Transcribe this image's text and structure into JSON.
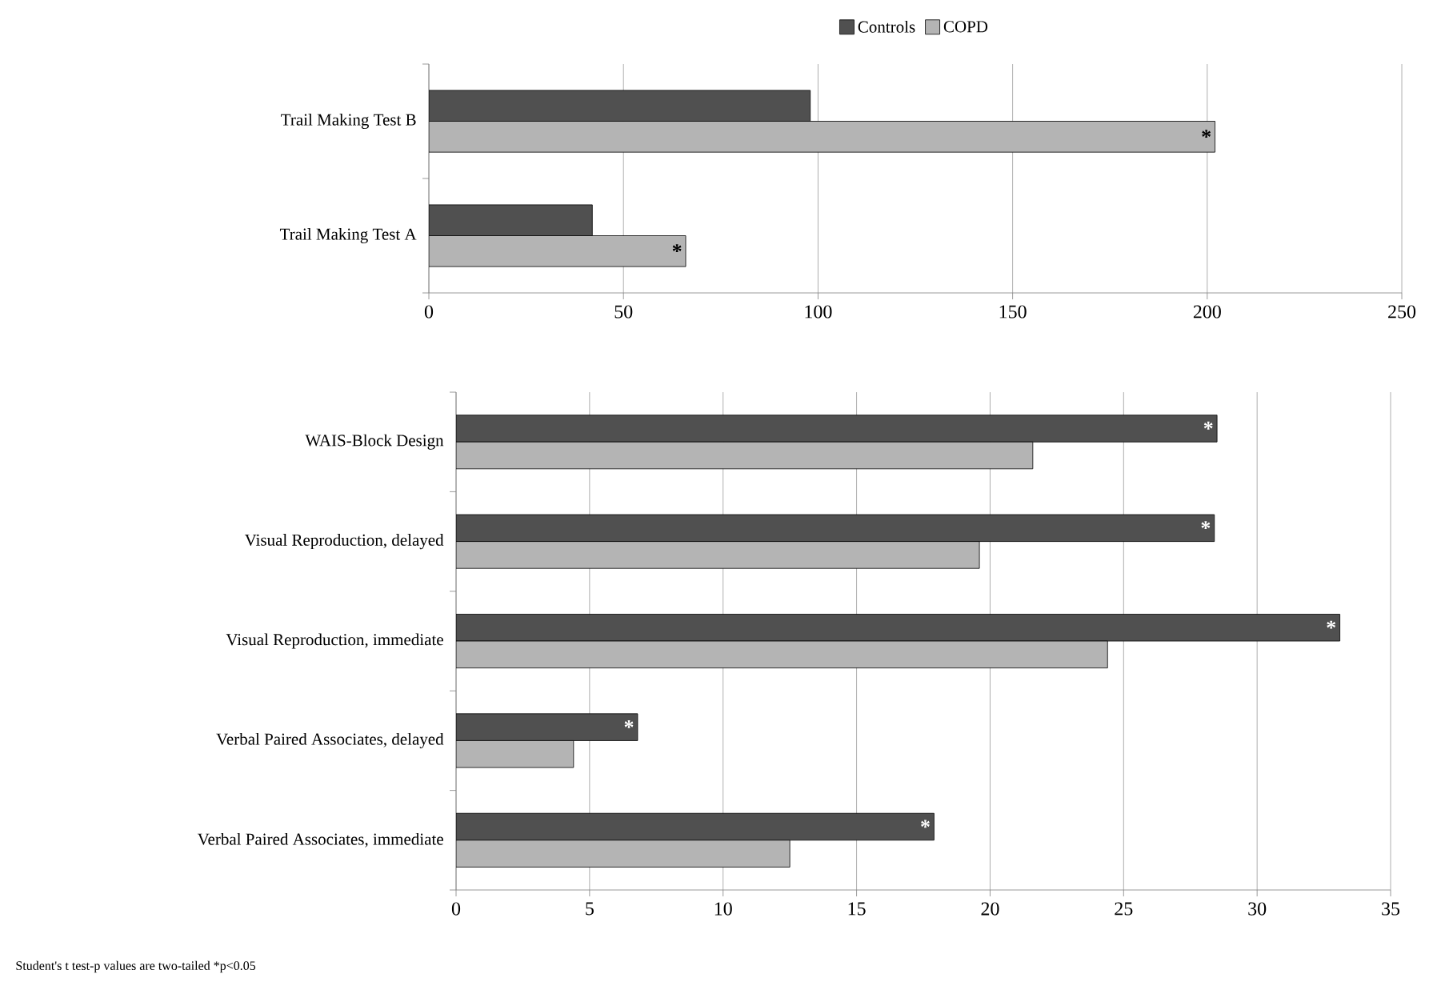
{
  "chart_data": [
    {
      "type": "bar",
      "orientation": "horizontal",
      "categories": [
        "Trail Making Test B",
        "Trail Making Test A"
      ],
      "series": [
        {
          "name": "Controls",
          "color": "#505050",
          "values": [
            98,
            42
          ]
        },
        {
          "name": "COPD",
          "color": "#b4b4b4",
          "values": [
            202,
            66
          ]
        }
      ],
      "xlim": [
        0,
        250
      ],
      "xticks": [
        0,
        50,
        100,
        150,
        200,
        250
      ],
      "grid": "x",
      "legend": "top",
      "annotations": [
        {
          "text": "*",
          "x": 202,
          "y": "Trail Making Test B"
        },
        {
          "text": "*",
          "x": 66,
          "y": "Trail Making Test A"
        }
      ]
    },
    {
      "type": "bar",
      "orientation": "horizontal",
      "categories": [
        "WAIS-Block Design",
        "Visual Reproduction, delayed",
        "Visual Reproduction, immediate",
        "Verbal Paired Associates, delayed",
        "Verbal Paired Associates, immediate"
      ],
      "series": [
        {
          "color": "#505050",
          "values": [
            28.5,
            28.4,
            33.1,
            6.8,
            17.9
          ]
        },
        {
          "color": "#b4b4b4",
          "values": [
            21.6,
            19.6,
            24.4,
            4.4,
            12.5
          ]
        }
      ],
      "xlim": [
        0,
        35
      ],
      "xticks": [
        0,
        5,
        10,
        15,
        20,
        25,
        30,
        35
      ],
      "grid": "x",
      "annotations": [
        {
          "text": "*",
          "x": 28.5,
          "y": "WAIS-Block Design"
        },
        {
          "text": "*",
          "x": 28.4,
          "y": "Visual Reproduction, delayed"
        },
        {
          "text": "*",
          "x": 33.1,
          "y": "Visual Reproduction, immediate"
        },
        {
          "text": "*",
          "x": 6.8,
          "y": "Verbal Paired Associates, delayed"
        },
        {
          "text": "*",
          "x": 17.9,
          "y": "Verbal Paired Associates, immediate"
        },
        "Student's t test-p values are two-tailed *p<0.05"
      ]
    }
  ]
}
